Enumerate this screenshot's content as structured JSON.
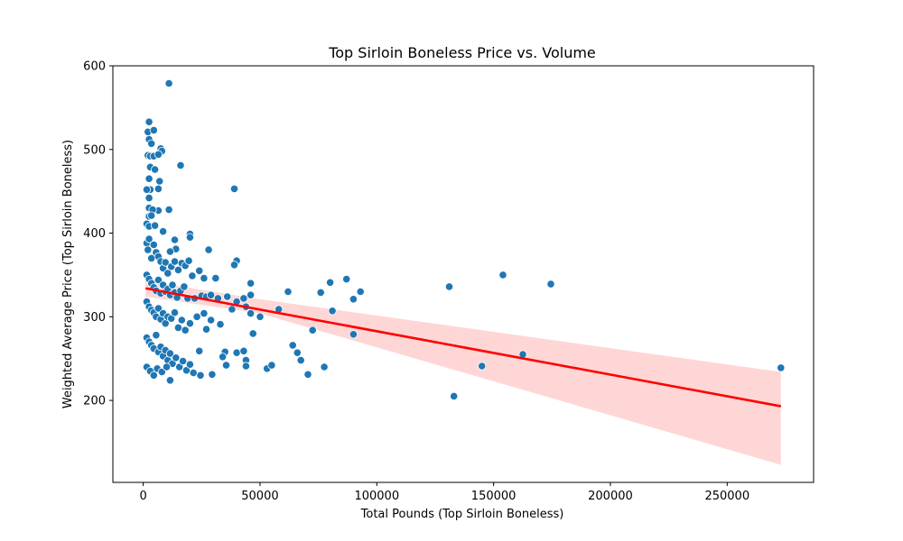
{
  "chart_data": {
    "type": "scatter",
    "title": "Top Sirloin Boneless Price vs. Volume",
    "xlabel": "Total Pounds (Top Sirloin Boneless)",
    "ylabel": "Weighted Average Price (Top Sirloin Boneless)",
    "xlim": [
      -13000,
      287000
    ],
    "ylim": [
      102,
      600
    ],
    "xticks": [
      0,
      50000,
      100000,
      150000,
      200000,
      250000
    ],
    "yticks": [
      200,
      300,
      400,
      500,
      600
    ],
    "grid": false,
    "legend": "none",
    "colors": {
      "points": "#1f77b4",
      "point_edge": "#ffffff",
      "fit_line": "#ff0000",
      "confidence_band": "#ff9999"
    },
    "regression": {
      "x": [
        1000,
        273000
      ],
      "y": [
        334,
        193
      ],
      "ci_lower_end": 123,
      "ci_upper_end": 234,
      "ci_lower_start": 324,
      "ci_upper_start": 343
    },
    "series": [
      {
        "points": [
          [
            11000,
            579
          ],
          [
            2500,
            533
          ],
          [
            2000,
            521
          ],
          [
            4500,
            523
          ],
          [
            7500,
            501
          ],
          [
            8000,
            498
          ],
          [
            2500,
            512
          ],
          [
            3500,
            507
          ],
          [
            2000,
            493
          ],
          [
            3000,
            492
          ],
          [
            4500,
            492
          ],
          [
            6500,
            494
          ],
          [
            3000,
            479
          ],
          [
            5000,
            476
          ],
          [
            16000,
            481
          ],
          [
            2500,
            465
          ],
          [
            7000,
            462
          ],
          [
            3000,
            452
          ],
          [
            6500,
            453
          ],
          [
            1500,
            452
          ],
          [
            2500,
            442
          ],
          [
            2500,
            430
          ],
          [
            6500,
            427
          ],
          [
            4000,
            428
          ],
          [
            11000,
            428
          ],
          [
            39000,
            453
          ],
          [
            2500,
            420
          ],
          [
            3500,
            421
          ],
          [
            1500,
            411
          ],
          [
            2500,
            408
          ],
          [
            5000,
            409
          ],
          [
            8500,
            402
          ],
          [
            13500,
            392
          ],
          [
            20000,
            399
          ],
          [
            20000,
            395
          ],
          [
            14000,
            381
          ],
          [
            11500,
            378
          ],
          [
            28000,
            380
          ],
          [
            40000,
            367
          ],
          [
            39000,
            362
          ],
          [
            1500,
            388
          ],
          [
            2000,
            380
          ],
          [
            2500,
            393
          ],
          [
            3500,
            370
          ],
          [
            4500,
            386
          ],
          [
            5500,
            377
          ],
          [
            6500,
            372
          ],
          [
            7500,
            366
          ],
          [
            8500,
            358
          ],
          [
            9500,
            365
          ],
          [
            10500,
            352
          ],
          [
            12000,
            360
          ],
          [
            13500,
            366
          ],
          [
            15000,
            356
          ],
          [
            16500,
            364
          ],
          [
            18000,
            361
          ],
          [
            19500,
            367
          ],
          [
            21000,
            349
          ],
          [
            24000,
            355
          ],
          [
            26000,
            346
          ],
          [
            31000,
            346
          ],
          [
            46000,
            340
          ],
          [
            1500,
            350
          ],
          [
            2500,
            345
          ],
          [
            3500,
            340
          ],
          [
            4500,
            335
          ],
          [
            5500,
            331
          ],
          [
            6500,
            344
          ],
          [
            7500,
            328
          ],
          [
            8500,
            338
          ],
          [
            9500,
            330
          ],
          [
            10500,
            333
          ],
          [
            11500,
            326
          ],
          [
            12500,
            338
          ],
          [
            13500,
            329
          ],
          [
            14500,
            323
          ],
          [
            16000,
            331
          ],
          [
            17500,
            336
          ],
          [
            19000,
            322
          ],
          [
            22000,
            322
          ],
          [
            25000,
            325
          ],
          [
            27000,
            324
          ],
          [
            29000,
            326
          ],
          [
            32000,
            322
          ],
          [
            36000,
            324
          ],
          [
            40000,
            318
          ],
          [
            43000,
            322
          ],
          [
            46000,
            326
          ],
          [
            1500,
            318
          ],
          [
            2500,
            312
          ],
          [
            3500,
            308
          ],
          [
            4500,
            305
          ],
          [
            5500,
            300
          ],
          [
            6500,
            310
          ],
          [
            7500,
            297
          ],
          [
            8500,
            304
          ],
          [
            9500,
            292
          ],
          [
            10500,
            300
          ],
          [
            12000,
            298
          ],
          [
            13500,
            305
          ],
          [
            15000,
            287
          ],
          [
            16500,
            296
          ],
          [
            18000,
            284
          ],
          [
            20000,
            292
          ],
          [
            23000,
            300
          ],
          [
            26000,
            304
          ],
          [
            29000,
            296
          ],
          [
            33000,
            291
          ],
          [
            38000,
            309
          ],
          [
            44000,
            312
          ],
          [
            46000,
            304
          ],
          [
            50000,
            300
          ],
          [
            58000,
            309
          ],
          [
            62000,
            330
          ],
          [
            76000,
            329
          ],
          [
            80000,
            341
          ],
          [
            87000,
            345
          ],
          [
            93000,
            330
          ],
          [
            90000,
            321
          ],
          [
            81000,
            307
          ],
          [
            1500,
            275
          ],
          [
            2500,
            270
          ],
          [
            3500,
            266
          ],
          [
            4500,
            262
          ],
          [
            5500,
            278
          ],
          [
            6500,
            258
          ],
          [
            7500,
            264
          ],
          [
            8500,
            253
          ],
          [
            9500,
            260
          ],
          [
            10500,
            248
          ],
          [
            11500,
            256
          ],
          [
            12500,
            244
          ],
          [
            14000,
            251
          ],
          [
            15500,
            240
          ],
          [
            17000,
            247
          ],
          [
            18500,
            236
          ],
          [
            20000,
            243
          ],
          [
            21500,
            233
          ],
          [
            1500,
            240
          ],
          [
            3000,
            235
          ],
          [
            4500,
            230
          ],
          [
            6000,
            238
          ],
          [
            8000,
            234
          ],
          [
            10000,
            240
          ],
          [
            11500,
            224
          ],
          [
            24000,
            259
          ],
          [
            27000,
            285
          ],
          [
            35000,
            258
          ],
          [
            34000,
            252
          ],
          [
            35500,
            242
          ],
          [
            24500,
            230
          ],
          [
            29500,
            231
          ],
          [
            40000,
            257
          ],
          [
            43000,
            259
          ],
          [
            44000,
            248
          ],
          [
            44000,
            241
          ],
          [
            47000,
            280
          ],
          [
            53000,
            238
          ],
          [
            55000,
            242
          ],
          [
            64000,
            266
          ],
          [
            66000,
            257
          ],
          [
            67500,
            248
          ],
          [
            70500,
            231
          ],
          [
            72500,
            284
          ],
          [
            77500,
            240
          ],
          [
            90000,
            279
          ],
          [
            131000,
            336
          ],
          [
            133000,
            205
          ],
          [
            145000,
            241
          ],
          [
            154000,
            350
          ],
          [
            162500,
            255
          ],
          [
            174500,
            339
          ],
          [
            273000,
            239
          ]
        ]
      }
    ]
  }
}
